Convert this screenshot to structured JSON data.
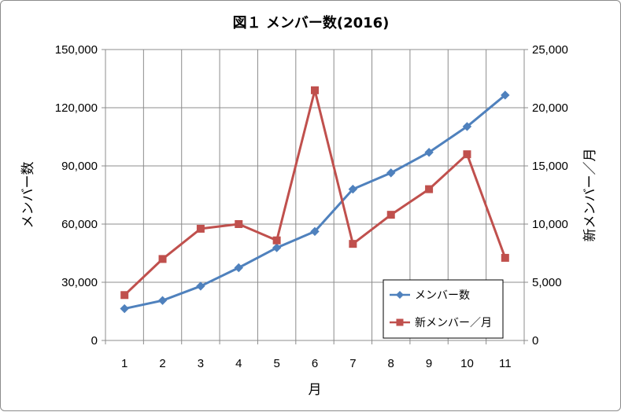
{
  "chart_data": {
    "type": "line",
    "title": "図１ メンバー数(2016)",
    "xlabel": "月",
    "ylabel": "メンバー数",
    "ylabel_right": "新メンバー／月",
    "categories": [
      "1",
      "2",
      "3",
      "4",
      "5",
      "6",
      "7",
      "8",
      "9",
      "10",
      "11"
    ],
    "ylim": [
      0,
      150000
    ],
    "ylim_right": [
      0,
      25000
    ],
    "yticks": [
      "0",
      "30,000",
      "60,000",
      "90,000",
      "120,000",
      "150,000"
    ],
    "yticks_right": [
      "0",
      "5,000",
      "10,000",
      "15,000",
      "20,000",
      "25,000"
    ],
    "grid": true,
    "legend_position": "bottom-right",
    "series": [
      {
        "name": "メンバー数",
        "axis": "left",
        "color": "#4f81bd",
        "marker": "diamond",
        "values": [
          16400,
          20600,
          28000,
          37500,
          47800,
          56200,
          78000,
          86400,
          97000,
          110300,
          126500
        ]
      },
      {
        "name": "新メンバー／月",
        "axis": "right",
        "color": "#c0504d",
        "marker": "square",
        "values": [
          3900,
          7000,
          9600,
          10000,
          8600,
          21500,
          8300,
          10800,
          13000,
          16000,
          7100
        ]
      }
    ]
  }
}
